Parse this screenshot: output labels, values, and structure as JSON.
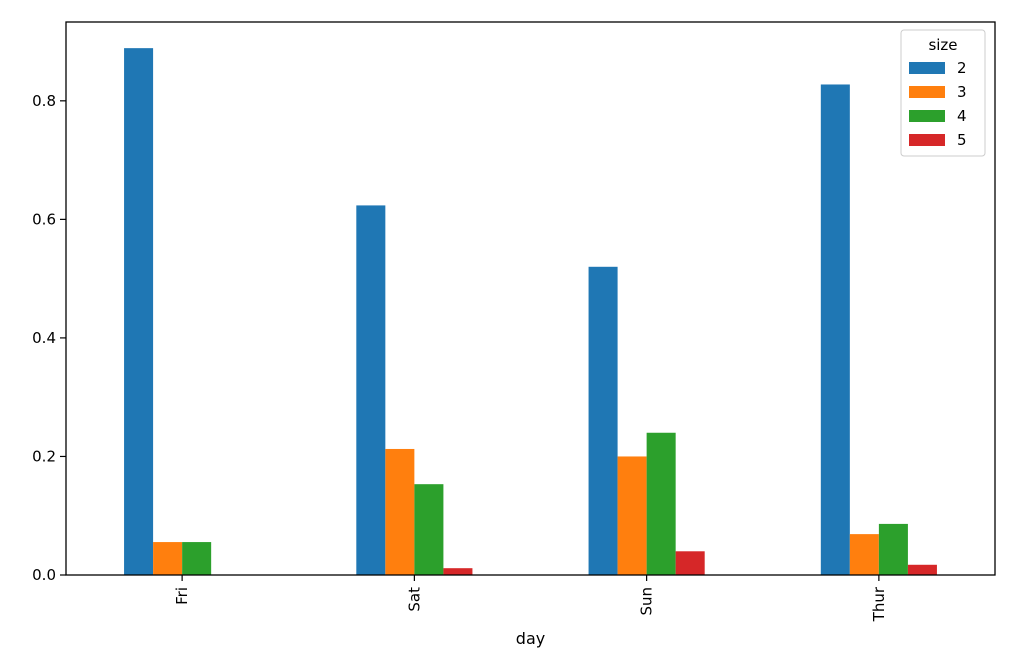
{
  "chart_data": {
    "type": "bar",
    "title": "",
    "xlabel": "day",
    "ylabel": "",
    "categories": [
      "Fri",
      "Sat",
      "Sun",
      "Thur"
    ],
    "series": [
      {
        "name": "2",
        "color": "#1f77b4",
        "values": [
          0.888889,
          0.623563,
          0.52,
          0.827586
        ]
      },
      {
        "name": "3",
        "color": "#ff7f0e",
        "values": [
          0.055556,
          0.212644,
          0.2,
          0.068966
        ]
      },
      {
        "name": "4",
        "color": "#2ca02c",
        "values": [
          0.055556,
          0.153226,
          0.24,
          0.086207
        ]
      },
      {
        "name": "5",
        "color": "#d62728",
        "values": [
          0.0,
          0.011494,
          0.04,
          0.017241
        ]
      }
    ],
    "ylim": [
      0,
      0.933
    ],
    "yticks": [
      "0.0",
      "0.2",
      "0.4",
      "0.6",
      "0.8"
    ],
    "ytick_values": [
      0.0,
      0.2,
      0.4,
      0.6,
      0.8
    ],
    "legend": {
      "title": "size",
      "placement": "top-right"
    },
    "grid": false
  }
}
